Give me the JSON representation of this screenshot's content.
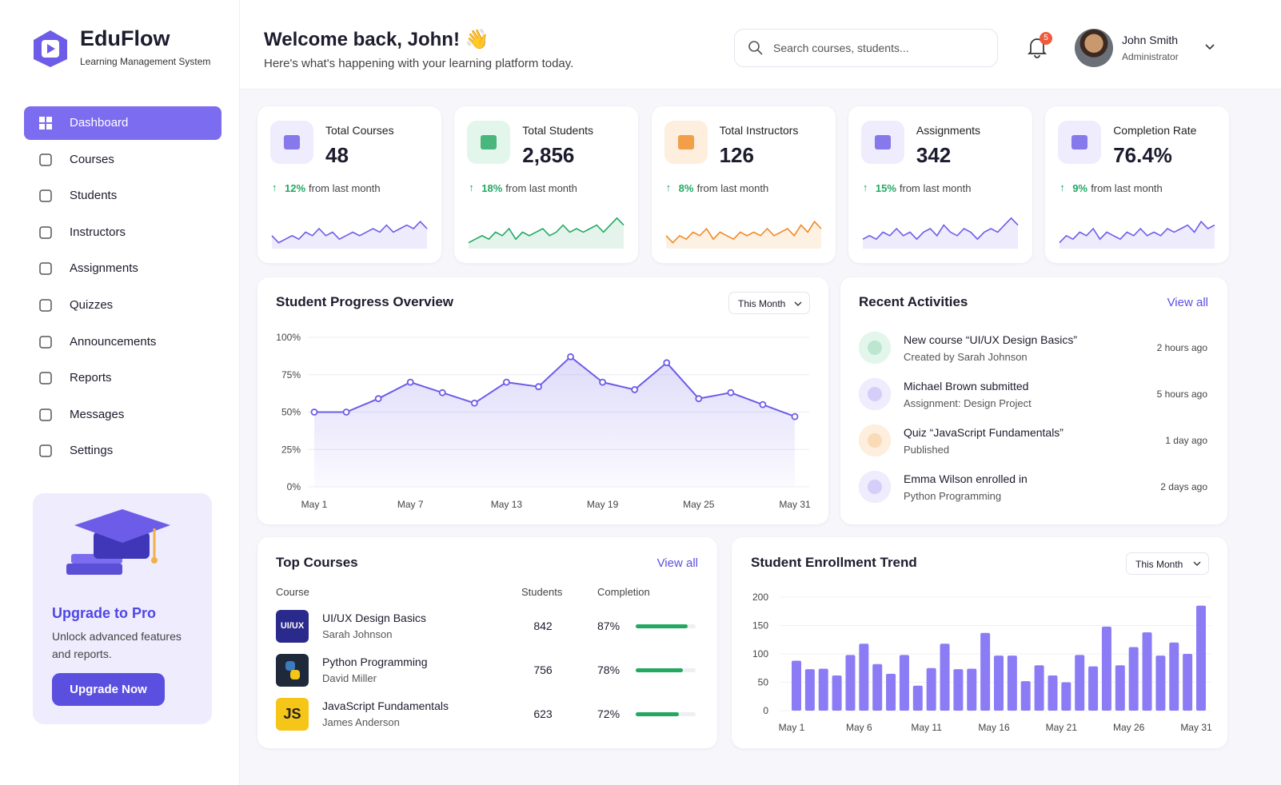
{
  "brand": {
    "name": "EduFlow",
    "tagline": "Learning Management System"
  },
  "nav": {
    "items": [
      "Dashboard",
      "Courses",
      "Students",
      "Instructors",
      "Assignments",
      "Quizzes",
      "Announcements",
      "Reports",
      "Messages",
      "Settings"
    ],
    "active": 0
  },
  "upgrade": {
    "title": "Upgrade to Pro",
    "text": "Unlock advanced features and reports.",
    "button": "Upgrade Now"
  },
  "header": {
    "title": "Welcome back, John! 👋",
    "subtitle": "Here's what's happening with your learning platform today.",
    "search": "Search courses, students...",
    "notifications": "5",
    "user": "John Smith",
    "role": "Administrator"
  },
  "stats": [
    {
      "label": "Total Courses",
      "value": "48",
      "change": "12%",
      "note": "from last month",
      "color": "#6c5ce7",
      "spark": [
        3,
        1,
        2,
        3,
        2,
        4,
        3,
        5,
        3,
        4,
        2,
        3,
        4,
        3,
        4,
        5,
        4,
        6,
        4,
        5,
        6,
        5,
        7,
        5
      ]
    },
    {
      "label": "Total Students",
      "value": "2,856",
      "change": "18%",
      "note": "from last month",
      "color": "#22a861",
      "spark": [
        1,
        2,
        3,
        2,
        4,
        3,
        5,
        2,
        4,
        3,
        4,
        5,
        3,
        4,
        6,
        4,
        5,
        4,
        5,
        6,
        4,
        6,
        8,
        6
      ]
    },
    {
      "label": "Total Instructors",
      "value": "126",
      "change": "8%",
      "note": "from last month",
      "color": "#f08a24",
      "spark": [
        3,
        1,
        3,
        2,
        4,
        3,
        5,
        2,
        4,
        3,
        2,
        4,
        3,
        4,
        3,
        5,
        3,
        4,
        5,
        3,
        6,
        4,
        7,
        5
      ]
    },
    {
      "label": "Assignments",
      "value": "342",
      "change": "15%",
      "note": "from last month",
      "color": "#6c5ce7",
      "spark": [
        2,
        3,
        2,
        4,
        3,
        5,
        3,
        4,
        2,
        4,
        5,
        3,
        6,
        4,
        3,
        5,
        4,
        2,
        4,
        5,
        4,
        6,
        8,
        6
      ]
    },
    {
      "label": "Completion Rate",
      "value": "76.4%",
      "change": "9%",
      "note": "from last month",
      "color": "#6c5ce7",
      "spark": [
        1,
        3,
        2,
        4,
        3,
        5,
        2,
        4,
        3,
        2,
        4,
        3,
        5,
        3,
        4,
        3,
        5,
        4,
        5,
        6,
        4,
        7,
        5,
        6
      ]
    }
  ],
  "progress": {
    "type": "line",
    "title": "Student Progress Overview",
    "period": "This Month",
    "x": [
      1,
      3,
      5,
      7,
      9,
      11,
      13,
      15,
      17,
      19,
      21,
      23,
      25,
      27,
      29,
      31
    ],
    "values": [
      50,
      50,
      59,
      70,
      63,
      56,
      70,
      67,
      87,
      70,
      65,
      83,
      59,
      63,
      55,
      47
    ],
    "xlim": [
      1,
      31
    ],
    "xticks": [
      {
        "value": 1,
        "label": "May 1"
      },
      {
        "value": 7,
        "label": "May 7"
      },
      {
        "value": 13,
        "label": "May 13"
      },
      {
        "value": 19,
        "label": "May 19"
      },
      {
        "value": 25,
        "label": "May 25"
      },
      {
        "value": 31,
        "label": "May 31"
      }
    ],
    "ylim": [
      0,
      100
    ],
    "yticks": [
      {
        "value": 0,
        "label": "0%"
      },
      {
        "value": 25,
        "label": "25%"
      },
      {
        "value": 50,
        "label": "50%"
      },
      {
        "value": 75,
        "label": "75%"
      },
      {
        "value": 100,
        "label": "100%"
      }
    ],
    "color": "#6c5ce7",
    "grid": true
  },
  "activities": {
    "title": "Recent Activities",
    "link": "View all",
    "items": [
      {
        "title": "New course “UI/UX Design Basics”",
        "detail": "Created by Sarah Johnson",
        "time": "2 hours ago"
      },
      {
        "title": "Michael Brown submitted",
        "detail": "Assignment: Design Project",
        "time": "5 hours ago"
      },
      {
        "title": "Quiz “JavaScript Fundamentals”",
        "detail": "Published",
        "time": "1 day ago"
      },
      {
        "title": "Emma Wilson enrolled in",
        "detail": "Python Programming",
        "time": "2 days ago"
      }
    ]
  },
  "courses": {
    "title": "Top Courses",
    "link": "View all",
    "columns": [
      "Course",
      "Students",
      "Completion"
    ],
    "rows": [
      {
        "thumb": "UI/UX",
        "name": "UI/UX Design Basics",
        "instructor": "Sarah Johnson",
        "students": "842",
        "completion": 87,
        "completion_label": "87%"
      },
      {
        "name": "Python Programming",
        "instructor": "David Miller",
        "students": "756",
        "completion": 78,
        "completion_label": "78%"
      },
      {
        "thumb": "JS",
        "name": "JavaScript Fundamentals",
        "instructor": "James Anderson",
        "students": "623",
        "completion": 72,
        "completion_label": "72%"
      }
    ]
  },
  "enrollment": {
    "type": "bar",
    "title": "Student Enrollment Trend",
    "period": "This Month",
    "categories": [
      "May 1",
      null,
      null,
      null,
      null,
      "May 6",
      null,
      null,
      null,
      null,
      "May 11",
      null,
      null,
      null,
      null,
      "May 16",
      null,
      null,
      null,
      null,
      "May 21",
      null,
      null,
      null,
      null,
      "May 26",
      null,
      null,
      null,
      null,
      "May 31"
    ],
    "values": [
      88,
      73,
      74,
      62,
      98,
      118,
      82,
      65,
      98,
      44,
      75,
      118,
      73,
      74,
      137,
      97,
      97,
      52,
      80,
      62,
      50,
      98,
      78,
      148,
      80,
      112,
      138,
      97,
      120,
      100,
      185
    ],
    "ylim": [
      0,
      200
    ],
    "yticks": [
      0,
      50,
      100,
      150,
      200
    ],
    "color": "#8b7cf6",
    "grid": true
  }
}
